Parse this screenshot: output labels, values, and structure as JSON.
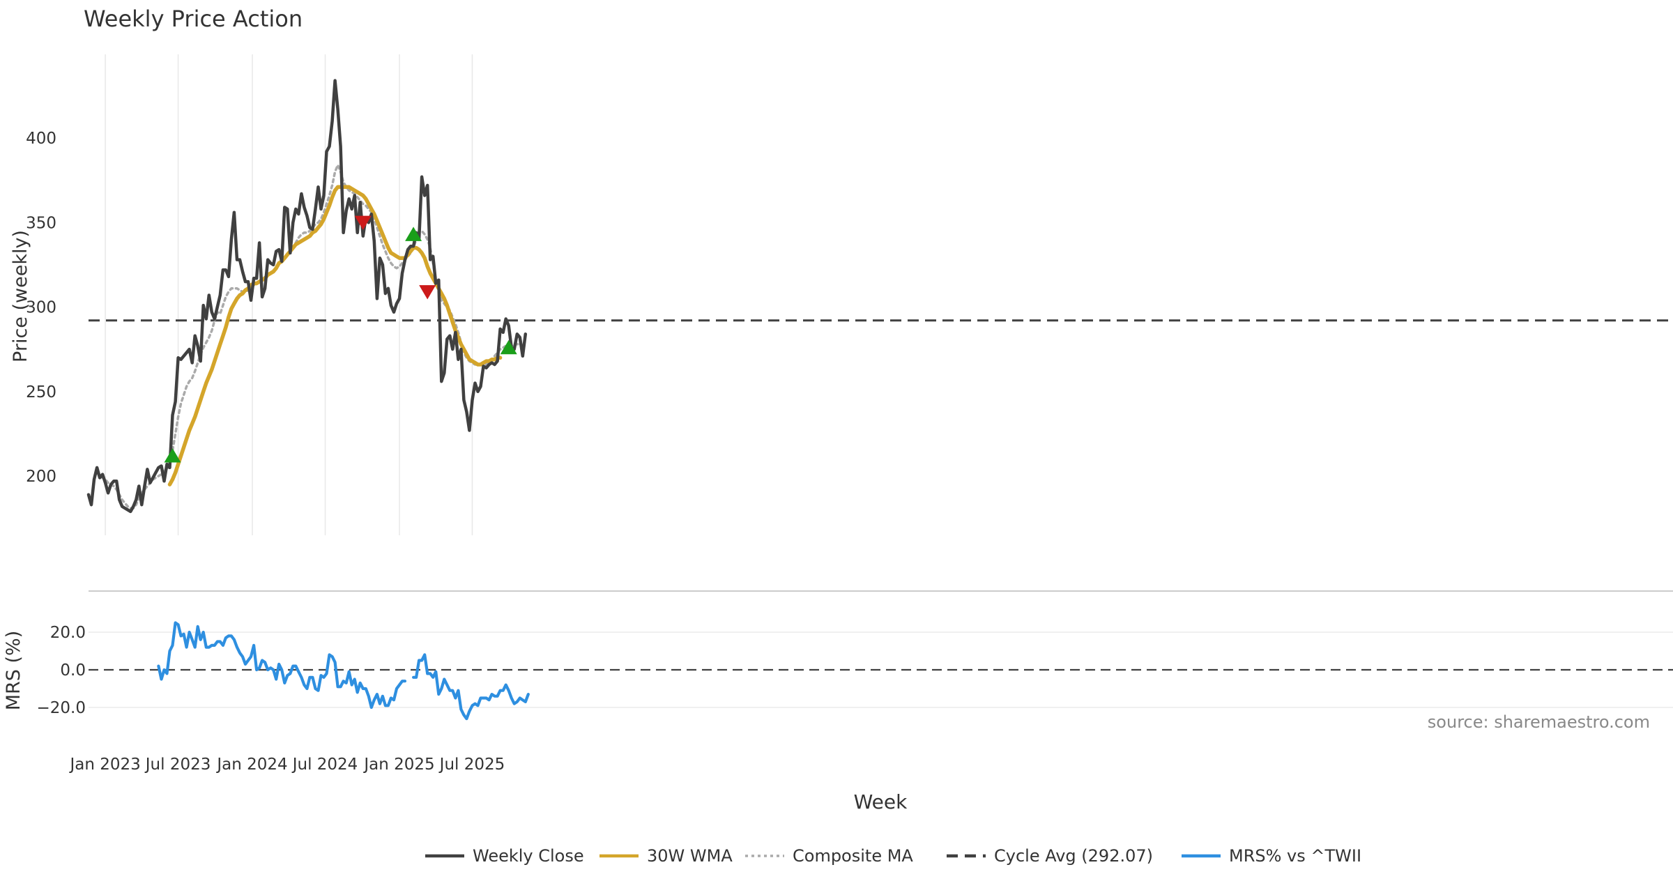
{
  "chart_data": [
    {
      "type": "line",
      "title": "Weekly Price Action",
      "ylabel": "Price (weekly)",
      "ylim": [
        165,
        450
      ],
      "yticks": [
        200,
        250,
        300,
        350,
        400
      ],
      "cycle_avg": 292.07,
      "series": [
        {
          "name": "Weekly Close",
          "color": "#404040",
          "start_week": 0,
          "values": [
            189,
            183,
            198,
            205,
            199,
            201,
            196,
            190,
            195,
            197,
            197,
            186,
            182,
            181,
            180,
            179,
            182,
            186,
            194,
            183,
            194,
            204,
            196,
            199,
            202,
            205,
            206,
            197,
            207,
            205,
            236,
            244,
            270,
            269,
            271,
            273,
            275,
            267,
            283,
            277,
            268,
            301,
            293,
            307,
            297,
            293,
            300,
            307,
            322,
            322,
            318,
            340,
            356,
            328,
            328,
            321,
            315,
            315,
            304,
            317,
            317,
            338,
            306,
            311,
            328,
            326,
            325,
            333,
            334,
            327,
            359,
            358,
            332,
            350,
            358,
            355,
            367,
            359,
            354,
            347,
            346,
            358,
            371,
            358,
            366,
            392,
            395,
            410,
            434,
            417,
            395,
            344,
            357,
            364,
            358,
            366,
            344,
            362,
            342,
            353,
            350,
            355,
            339,
            305,
            329,
            325,
            308,
            311,
            301,
            297,
            302,
            305,
            320,
            328,
            334,
            336,
            336,
            344,
            340,
            377,
            366,
            372,
            328,
            330,
            314,
            316,
            256,
            261,
            281,
            283,
            275,
            285,
            269,
            275,
            245,
            238,
            227,
            245,
            255,
            250,
            253,
            265,
            264,
            266,
            267,
            266,
            268,
            287,
            285,
            293,
            289,
            276,
            275,
            284,
            282,
            271,
            284
          ]
        },
        {
          "name": "30W WMA",
          "color": "#D4A52A",
          "start_week": 29,
          "values": [
            195,
            198,
            202,
            207,
            212,
            217,
            222,
            227,
            231,
            235,
            240,
            245,
            250,
            255,
            259,
            263,
            268,
            273,
            278,
            283,
            288,
            294,
            299,
            302,
            305,
            307,
            308,
            310,
            311,
            313,
            314,
            314,
            315,
            316,
            317,
            319,
            320,
            321,
            323,
            326,
            327,
            329,
            331,
            333,
            335,
            337,
            338,
            339,
            340,
            341,
            342,
            344,
            345,
            347,
            349,
            352,
            356,
            360,
            365,
            369,
            371,
            371,
            371,
            371,
            371,
            370,
            369,
            368,
            367,
            366,
            364,
            361,
            358,
            355,
            351,
            347,
            343,
            339,
            335,
            332,
            331,
            330,
            329,
            329,
            329,
            331,
            333,
            335,
            335,
            334,
            332,
            329,
            324,
            320,
            317,
            314,
            311,
            308,
            305,
            301,
            296,
            291,
            286,
            282,
            278,
            275,
            272,
            269,
            268,
            267,
            266,
            266,
            267,
            268,
            268,
            269,
            269,
            270,
            270
          ]
        },
        {
          "name": "Composite MA",
          "color": "#AAAAAA",
          "start_week": 3,
          "values": [
            202,
            200,
            199,
            198,
            196,
            195,
            194,
            192,
            189,
            186,
            184,
            182,
            181,
            181,
            183,
            187,
            190,
            192,
            194,
            196,
            198,
            199,
            200,
            201,
            203,
            204,
            208,
            215,
            225,
            235,
            243,
            248,
            253,
            256,
            258,
            262,
            267,
            272,
            276,
            279,
            282,
            286,
            292,
            297,
            296,
            301,
            306,
            309,
            311,
            311,
            311,
            310,
            309,
            309,
            310,
            311,
            313,
            314,
            315,
            316,
            318,
            319,
            320,
            321,
            323,
            325,
            327,
            329,
            331,
            333,
            335,
            338,
            341,
            343,
            344,
            344,
            345,
            347,
            349,
            350,
            352,
            356,
            361,
            366,
            372,
            380,
            384,
            380,
            374,
            371,
            369,
            368,
            367,
            365,
            363,
            361,
            360,
            358,
            356,
            352,
            347,
            342,
            337,
            333,
            329,
            326,
            324,
            323,
            324,
            326,
            328,
            330,
            332,
            335,
            340,
            345,
            345,
            343,
            340,
            335,
            326,
            316,
            309,
            304,
            302,
            300,
            298,
            294,
            290,
            285,
            279,
            273,
            270,
            268,
            267,
            266,
            266,
            266,
            266,
            266,
            267,
            268,
            271,
            273,
            275,
            276,
            277,
            277,
            277,
            278,
            278,
            278
          ]
        }
      ],
      "markers": [
        {
          "type": "buy",
          "week": 30,
          "value": 212
        },
        {
          "type": "sell",
          "week": 98,
          "value": 350
        },
        {
          "type": "buy",
          "week": 116,
          "value": 343
        },
        {
          "type": "sell",
          "week": 121,
          "value": 309
        },
        {
          "type": "buy",
          "week": 150,
          "value": 276
        }
      ]
    },
    {
      "type": "line",
      "ylabel": "MRS (%)",
      "ylim": [
        -30,
        30
      ],
      "yticks": [
        20.0,
        0.0,
        -20.0
      ],
      "ytick_labels": [
        "20.0",
        "0.0",
        "−20.0"
      ],
      "series": [
        {
          "name": "MRS% vs ^TWII",
          "color": "#2E8FE0",
          "start_week": 25,
          "values": [
            2,
            -5,
            0,
            -2,
            10,
            13,
            25,
            24,
            18,
            19,
            12,
            20,
            16,
            12,
            23,
            16,
            20,
            12,
            12,
            13,
            13,
            15,
            15,
            13,
            17,
            18,
            18,
            16,
            12,
            9,
            7,
            3,
            5,
            7,
            13,
            0,
            1,
            5,
            4,
            0,
            1,
            0,
            -5,
            3,
            0,
            -7,
            -3,
            -2,
            2,
            2,
            -1,
            -4,
            -8,
            -10,
            -4,
            -4,
            -10,
            -11,
            -3,
            -4,
            -2,
            8,
            7,
            4,
            -9,
            -9,
            -6,
            -7,
            -1,
            -8,
            -5,
            -12,
            -7,
            -10,
            -10,
            -14,
            -20,
            -16,
            -13,
            -18,
            -14,
            -19,
            -19,
            -15,
            -16,
            -10,
            -8,
            -6,
            -6,
            null,
            null,
            -4,
            -4,
            5,
            5,
            8,
            -2,
            -2,
            -4,
            -1,
            -13,
            -10,
            -5,
            -8,
            -11,
            -11,
            -15,
            -11,
            -21,
            -24,
            -26,
            -22,
            -19,
            -18,
            -19,
            -15,
            -15,
            -15,
            -16,
            -13,
            -14,
            -14,
            -11,
            -11,
            -8,
            -11,
            -15,
            -18,
            -17,
            -15,
            -16,
            -17,
            -13
          ]
        }
      ]
    }
  ],
  "watermark": "source: sharemaestro.com",
  "x_axis": {
    "label": "Week",
    "ticks": [
      {
        "label": "Jan 2023",
        "week": 6
      },
      {
        "label": "Jul 2023",
        "week": 32
      },
      {
        "label": "Jan 2024",
        "week": 58.5
      },
      {
        "label": "Jul 2024",
        "week": 84.5
      },
      {
        "label": "Jan 2025",
        "week": 111
      },
      {
        "label": "Jul 2025",
        "week": 137
      }
    ]
  },
  "legend": {
    "position": "bottom-center",
    "items": [
      {
        "label": "Weekly Close",
        "color": "#404040",
        "style": "solid"
      },
      {
        "label": "30W WMA",
        "color": "#D4A52A",
        "style": "solid"
      },
      {
        "label": "Composite MA",
        "color": "#AAAAAA",
        "style": "dotted"
      },
      {
        "label": "Cycle Avg (292.07)",
        "color": "#404040",
        "style": "dashed"
      },
      {
        "label": "MRS% vs ^TWII",
        "color": "#2E8FE0",
        "style": "solid"
      }
    ]
  },
  "colors": {
    "buy": "#1A9E1A",
    "sell": "#CC1A1A",
    "grid": "#E8E8E8",
    "text": "#333333"
  }
}
